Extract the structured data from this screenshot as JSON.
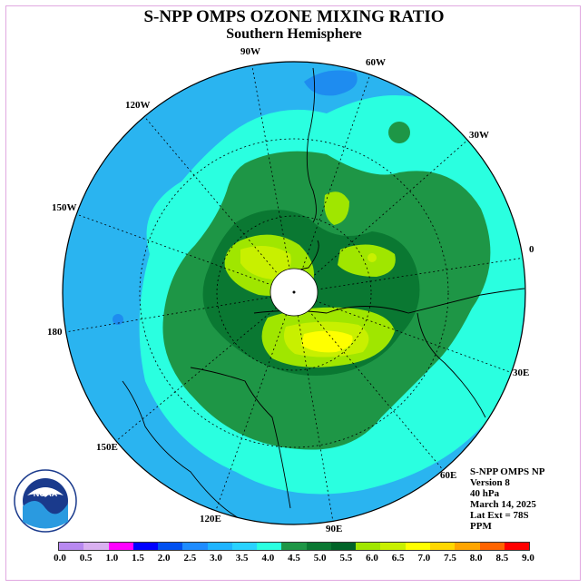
{
  "title": "S-NPP OMPS OZONE MIXING RATIO",
  "subtitle": "Southern Hemisphere",
  "longitude_labels": [
    "90W",
    "60W",
    "30W",
    "0",
    "30E",
    "60E",
    "90E",
    "120E",
    "150E",
    "180",
    "150W",
    "120W"
  ],
  "info": {
    "line1": "S-NPP OMPS NP",
    "line2": "Version 8",
    "line3": "40 hPa",
    "line4": "March 14, 2025",
    "line5": "Lat Ext = 78S",
    "line6": "PPM"
  },
  "logo_text": "NOAA",
  "colorbar": {
    "ticks": [
      "0.0",
      "0.5",
      "1.0",
      "1.5",
      "2.0",
      "2.5",
      "3.0",
      "3.5",
      "4.0",
      "4.5",
      "5.0",
      "5.5",
      "6.0",
      "6.5",
      "7.0",
      "7.5",
      "8.0",
      "8.5",
      "9.0"
    ],
    "colors": [
      "#b889f0",
      "#d9b0f0",
      "#ff00ff",
      "#0000ff",
      "#0050f0",
      "#1e8cff",
      "#1eb4ff",
      "#28d2ff",
      "#2affe0",
      "#1e9646",
      "#0a7832",
      "#006428",
      "#a0e600",
      "#c8f000",
      "#ffff00",
      "#ffd700",
      "#ffa500",
      "#ff6400",
      "#ff0000",
      "#8b5a3c"
    ]
  }
}
